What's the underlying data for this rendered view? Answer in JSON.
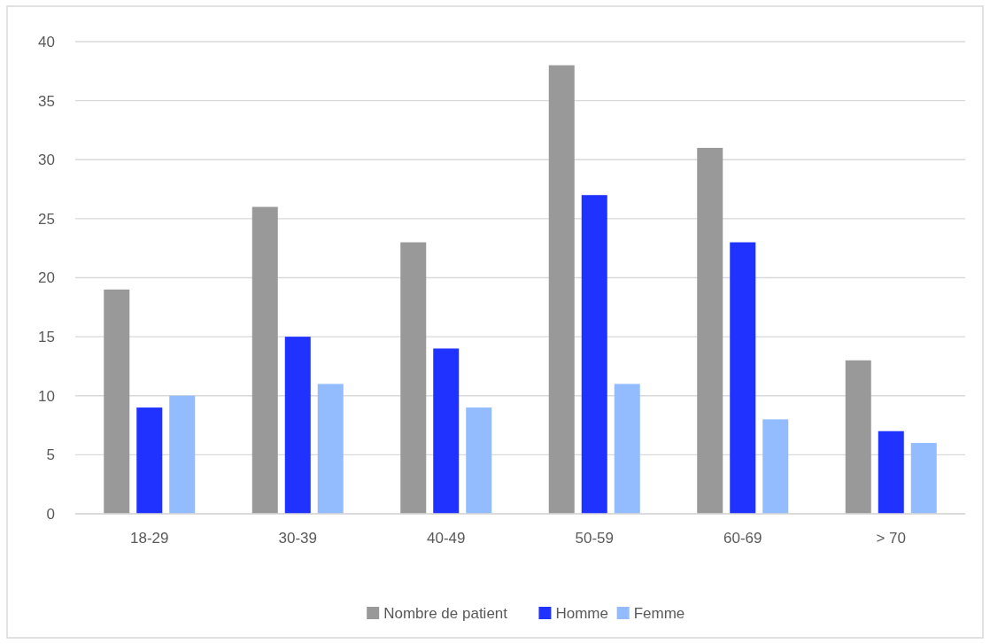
{
  "chart_data": {
    "type": "bar",
    "categories": [
      "18-29",
      "30-39",
      "40-49",
      "50-59",
      "60-69",
      "> 70"
    ],
    "series": [
      {
        "name": "Nombre de patient",
        "color": "#999999",
        "values": [
          19,
          26,
          23,
          38,
          31,
          13
        ]
      },
      {
        "name": "Homme",
        "color": "#1f32ff",
        "values": [
          9,
          15,
          14,
          27,
          23,
          7
        ]
      },
      {
        "name": "Femme",
        "color": "#93bcff",
        "values": [
          10,
          11,
          9,
          11,
          8,
          6
        ]
      }
    ],
    "ylim": [
      0,
      40
    ],
    "yticks": [
      0,
      5,
      10,
      15,
      20,
      25,
      30,
      35,
      40
    ],
    "grid": "y",
    "legend": "bottom"
  }
}
